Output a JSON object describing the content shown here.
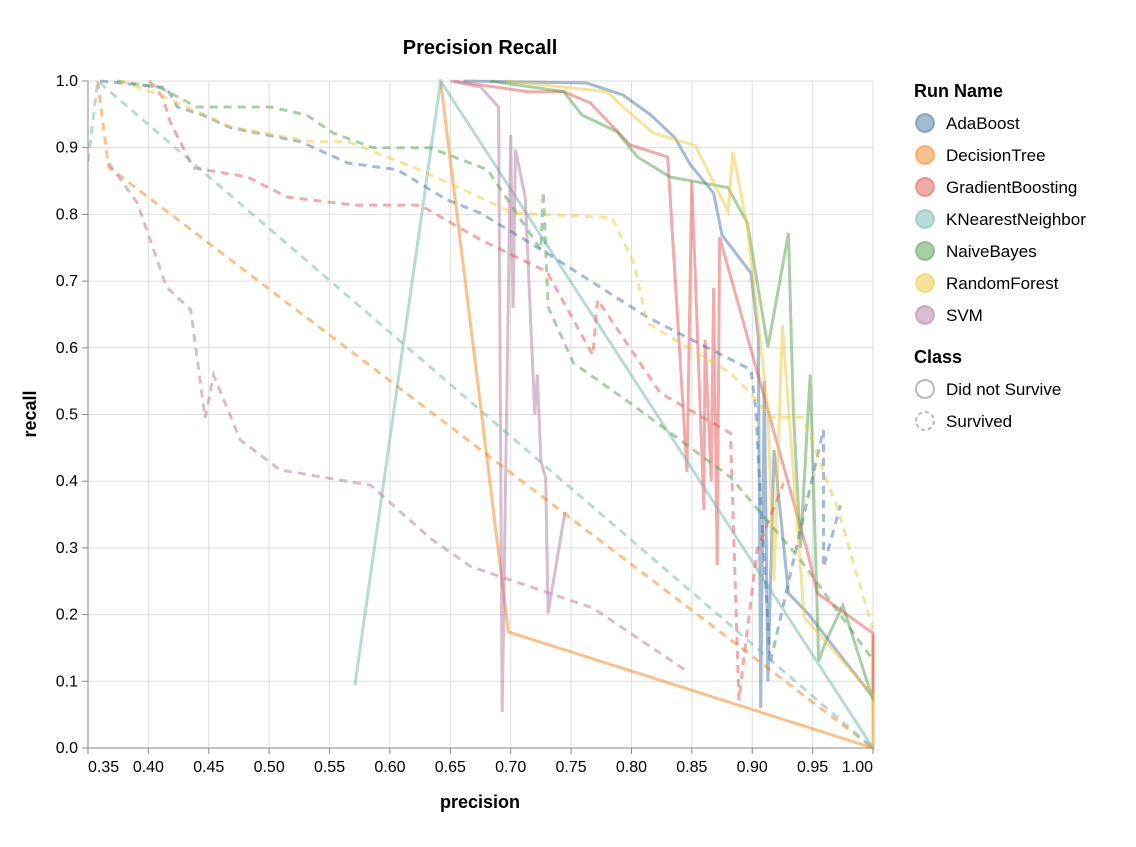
{
  "chart_data": {
    "type": "line",
    "title": "Precision Recall",
    "xlabel": "precision",
    "ylabel": "recall",
    "xlim": [
      0.35,
      1.0
    ],
    "ylim": [
      0.0,
      1.0
    ],
    "grid": true,
    "x_ticks": [
      "0.35",
      "0.40",
      "0.45",
      "0.50",
      "0.55",
      "0.60",
      "0.65",
      "0.70",
      "0.75",
      "0.80",
      "0.85",
      "0.90",
      "0.95",
      "1.00"
    ],
    "y_ticks": [
      "0.0",
      "0.1",
      "0.2",
      "0.3",
      "0.4",
      "0.5",
      "0.6",
      "0.7",
      "0.8",
      "0.9",
      "1.0"
    ],
    "legend_placement": "right",
    "legend": {
      "color_title": "Run Name",
      "color_entries": [
        {
          "name": "AdaBoost",
          "color": "#4c78a8"
        },
        {
          "name": "DecisionTree",
          "color": "#f58518"
        },
        {
          "name": "GradientBoosting",
          "color": "#e45756"
        },
        {
          "name": "KNearestNeighbor",
          "color": "#72b7b2"
        },
        {
          "name": "NaiveBayes",
          "color": "#54a24b"
        },
        {
          "name": "RandomForest",
          "color": "#eeca3b"
        },
        {
          "name": "SVM",
          "color": "#b279a2"
        }
      ],
      "dash_title": "Class",
      "dash_entries": [
        {
          "name": "Did not Survive",
          "dashed": false
        },
        {
          "name": "Survived",
          "dashed": true
        }
      ]
    },
    "series": [
      {
        "run": "AdaBoost",
        "class": "Did not Survive",
        "points": [
          [
            0.661,
            1.0
          ],
          [
            0.763,
            0.997
          ],
          [
            0.793,
            0.979
          ],
          [
            0.816,
            0.949
          ],
          [
            0.836,
            0.915
          ],
          [
            0.849,
            0.874
          ],
          [
            0.868,
            0.832
          ],
          [
            0.875,
            0.769
          ],
          [
            0.899,
            0.712
          ],
          [
            0.905,
            0.616
          ],
          [
            0.907,
            0.06
          ],
          [
            0.91,
            0.55
          ],
          [
            0.913,
            0.1
          ],
          [
            0.918,
            0.447
          ],
          [
            0.93,
            0.232
          ],
          [
            0.946,
            0.202
          ],
          [
            1.0,
            0.076
          ]
        ]
      },
      {
        "run": "DecisionTree",
        "class": "Did not Survive",
        "points": [
          [
            0.642,
            1.0
          ],
          [
            0.698,
            0.174
          ],
          [
            1.0,
            0.0
          ],
          [
            1.0,
            0.17
          ]
        ]
      },
      {
        "run": "GradientBoosting",
        "class": "Did not Survive",
        "points": [
          [
            0.653,
            1.0
          ],
          [
            0.714,
            0.984
          ],
          [
            0.744,
            0.984
          ],
          [
            0.766,
            0.967
          ],
          [
            0.799,
            0.904
          ],
          [
            0.83,
            0.886
          ],
          [
            0.846,
            0.414
          ],
          [
            0.85,
            0.849
          ],
          [
            0.86,
            0.357
          ],
          [
            0.861,
            0.612
          ],
          [
            0.866,
            0.4
          ],
          [
            0.868,
            0.69
          ],
          [
            0.871,
            0.274
          ],
          [
            0.873,
            0.766
          ],
          [
            0.946,
            0.292
          ],
          [
            0.954,
            0.232
          ],
          [
            1.0,
            0.172
          ],
          [
            1.0,
            0.07
          ]
        ]
      },
      {
        "run": "KNearestNeighbor",
        "class": "Did not Survive",
        "points": [
          [
            0.571,
            0.094
          ],
          [
            0.642,
            1.0
          ],
          [
            1.0,
            0.0
          ]
        ]
      },
      {
        "run": "NaiveBayes",
        "class": "Did not Survive",
        "points": [
          [
            0.683,
            1.0
          ],
          [
            0.744,
            0.984
          ],
          [
            0.759,
            0.949
          ],
          [
            0.788,
            0.924
          ],
          [
            0.805,
            0.886
          ],
          [
            0.832,
            0.856
          ],
          [
            0.88,
            0.84
          ],
          [
            0.896,
            0.787
          ],
          [
            0.913,
            0.601
          ],
          [
            0.93,
            0.772
          ],
          [
            0.934,
            0.507
          ],
          [
            0.94,
            0.3
          ],
          [
            0.948,
            0.56
          ],
          [
            0.955,
            0.13
          ],
          [
            0.961,
            0.16
          ],
          [
            0.975,
            0.214
          ],
          [
            1.0,
            0.072
          ]
        ]
      },
      {
        "run": "RandomForest",
        "class": "Did not Survive",
        "points": [
          [
            0.697,
            1.0
          ],
          [
            0.78,
            0.984
          ],
          [
            0.793,
            0.961
          ],
          [
            0.818,
            0.922
          ],
          [
            0.853,
            0.903
          ],
          [
            0.88,
            0.804
          ],
          [
            0.884,
            0.894
          ],
          [
            0.896,
            0.781
          ],
          [
            0.913,
            0.507
          ],
          [
            0.918,
            0.25
          ],
          [
            0.925,
            0.634
          ],
          [
            0.943,
            0.196
          ],
          [
            1.0,
            0.079
          ],
          [
            1.0,
            0.037
          ]
        ]
      },
      {
        "run": "SVM",
        "class": "Did not Survive",
        "points": [
          [
            0.65,
            1.0
          ],
          [
            0.675,
            0.991
          ],
          [
            0.69,
            0.961
          ],
          [
            0.693,
            0.054
          ],
          [
            0.7,
            0.919
          ],
          [
            0.702,
            0.66
          ],
          [
            0.704,
            0.897
          ],
          [
            0.712,
            0.826
          ],
          [
            0.72,
            0.5
          ],
          [
            0.722,
            0.56
          ],
          [
            0.725,
            0.43
          ],
          [
            0.729,
            0.405
          ],
          [
            0.731,
            0.202
          ],
          [
            0.745,
            0.354
          ]
        ]
      },
      {
        "run": "AdaBoost",
        "class": "Survived",
        "points": [
          [
            0.36,
            1.0
          ],
          [
            0.415,
            0.99
          ],
          [
            0.424,
            0.961
          ],
          [
            0.445,
            0.949
          ],
          [
            0.468,
            0.93
          ],
          [
            0.526,
            0.909
          ],
          [
            0.565,
            0.877
          ],
          [
            0.606,
            0.867
          ],
          [
            0.647,
            0.822
          ],
          [
            0.675,
            0.802
          ],
          [
            0.73,
            0.742
          ],
          [
            0.813,
            0.646
          ],
          [
            0.899,
            0.567
          ],
          [
            0.903,
            0.507
          ],
          [
            0.905,
            0.432
          ],
          [
            0.915,
            0.127
          ],
          [
            0.929,
            0.241
          ],
          [
            0.959,
            0.477
          ],
          [
            0.959,
            0.271
          ],
          [
            0.973,
            0.364
          ]
        ]
      },
      {
        "run": "DecisionTree",
        "class": "Survived",
        "points": [
          [
            0.358,
            1.0
          ],
          [
            0.367,
            0.871
          ],
          [
            1.0,
            0.0
          ]
        ]
      },
      {
        "run": "GradientBoosting",
        "class": "Survived",
        "points": [
          [
            0.401,
            1.0
          ],
          [
            0.412,
            0.975
          ],
          [
            0.418,
            0.939
          ],
          [
            0.437,
            0.87
          ],
          [
            0.482,
            0.856
          ],
          [
            0.515,
            0.826
          ],
          [
            0.57,
            0.814
          ],
          [
            0.625,
            0.814
          ],
          [
            0.675,
            0.762
          ],
          [
            0.73,
            0.714
          ],
          [
            0.768,
            0.589
          ],
          [
            0.772,
            0.672
          ],
          [
            0.824,
            0.532
          ],
          [
            0.882,
            0.472
          ],
          [
            0.889,
            0.072
          ],
          [
            0.904,
            0.297
          ],
          [
            0.926,
            0.397
          ]
        ]
      },
      {
        "run": "KNearestNeighbor",
        "class": "Survived",
        "points": [
          [
            0.35,
            0.879
          ],
          [
            0.358,
            1.0
          ],
          [
            1.0,
            0.0
          ]
        ]
      },
      {
        "run": "NaiveBayes",
        "class": "Survived",
        "points": [
          [
            0.374,
            1.0
          ],
          [
            0.41,
            0.99
          ],
          [
            0.44,
            0.961
          ],
          [
            0.501,
            0.961
          ],
          [
            0.531,
            0.949
          ],
          [
            0.553,
            0.922
          ],
          [
            0.586,
            0.9
          ],
          [
            0.633,
            0.9
          ],
          [
            0.675,
            0.871
          ],
          [
            0.681,
            0.867
          ],
          [
            0.725,
            0.747
          ],
          [
            0.727,
            0.834
          ],
          [
            0.731,
            0.661
          ],
          [
            0.752,
            0.577
          ],
          [
            0.799,
            0.517
          ],
          [
            0.882,
            0.406
          ],
          [
            0.94,
            0.282
          ],
          [
            1.0,
            0.132
          ]
        ]
      },
      {
        "run": "RandomForest",
        "class": "Survived",
        "points": [
          [
            0.377,
            1.0
          ],
          [
            0.41,
            0.979
          ],
          [
            0.468,
            0.931
          ],
          [
            0.536,
            0.909
          ],
          [
            0.565,
            0.909
          ],
          [
            0.619,
            0.871
          ],
          [
            0.675,
            0.825
          ],
          [
            0.702,
            0.802
          ],
          [
            0.784,
            0.795
          ],
          [
            0.802,
            0.727
          ],
          [
            0.813,
            0.637
          ],
          [
            0.882,
            0.562
          ],
          [
            0.904,
            0.522
          ],
          [
            0.913,
            0.496
          ],
          [
            0.942,
            0.496
          ],
          [
            0.971,
            0.357
          ],
          [
            1.0,
            0.177
          ]
        ]
      },
      {
        "run": "SVM",
        "class": "Survived",
        "points": [
          [
            0.367,
            0.877
          ],
          [
            0.391,
            0.817
          ],
          [
            0.415,
            0.691
          ],
          [
            0.435,
            0.657
          ],
          [
            0.447,
            0.495
          ],
          [
            0.454,
            0.559
          ],
          [
            0.476,
            0.462
          ],
          [
            0.509,
            0.417
          ],
          [
            0.584,
            0.394
          ],
          [
            0.633,
            0.315
          ],
          [
            0.667,
            0.272
          ],
          [
            0.768,
            0.21
          ],
          [
            0.847,
            0.114
          ]
        ]
      }
    ]
  }
}
